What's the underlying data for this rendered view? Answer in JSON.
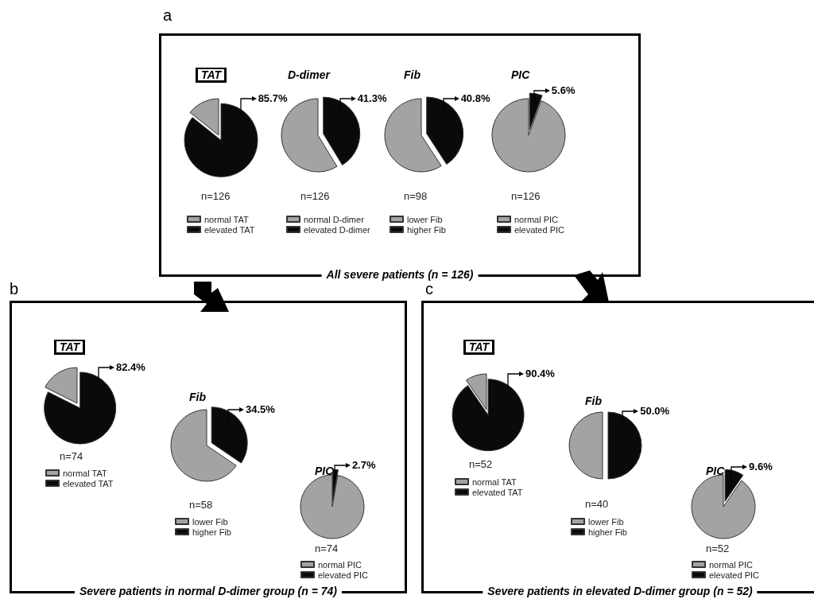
{
  "chart_data": [
    {
      "type": "pie",
      "title": "TAT",
      "categories": [
        "normal TAT",
        "elevated TAT"
      ],
      "values": [
        14.3,
        85.7
      ],
      "colors": [
        "#a3a3a3",
        "#0a0a0a"
      ],
      "value_labels": [
        null,
        "85.7%"
      ],
      "legend": "bottom",
      "annotations": [
        "a",
        "All severe patients (n = 126)",
        "n=126"
      ]
    },
    {
      "type": "pie",
      "title": "D-dimer",
      "categories": [
        "normal D-dimer",
        "elevated D-dimer"
      ],
      "values": [
        58.7,
        41.3
      ],
      "colors": [
        "#a3a3a3",
        "#0a0a0a"
      ],
      "value_labels": [
        null,
        "41.3%"
      ],
      "legend": "bottom",
      "annotations": [
        "n=126"
      ]
    },
    {
      "type": "pie",
      "title": "Fib",
      "categories": [
        "lower Fib",
        "higher Fib"
      ],
      "values": [
        59.2,
        40.8
      ],
      "colors": [
        "#a3a3a3",
        "#0a0a0a"
      ],
      "value_labels": [
        null,
        "40.8%"
      ],
      "legend": "bottom",
      "annotations": [
        "n=98"
      ]
    },
    {
      "type": "pie",
      "title": "PIC",
      "categories": [
        "normal PIC",
        "elevated PIC"
      ],
      "values": [
        94.4,
        5.6
      ],
      "colors": [
        "#a3a3a3",
        "#0a0a0a"
      ],
      "value_labels": [
        null,
        "5.6%"
      ],
      "legend": "bottom",
      "annotations": [
        "n=126"
      ]
    },
    {
      "type": "pie",
      "title": "TAT",
      "categories": [
        "normal TAT",
        "elevated TAT"
      ],
      "values": [
        17.6,
        82.4
      ],
      "colors": [
        "#a3a3a3",
        "#0a0a0a"
      ],
      "value_labels": [
        null,
        "82.4%"
      ],
      "legend": "bottom",
      "annotations": [
        "b",
        "Severe patients in normal D-dimer group (n = 74)",
        "n=74"
      ]
    },
    {
      "type": "pie",
      "title": "Fib",
      "categories": [
        "lower Fib",
        "higher Fib"
      ],
      "values": [
        65.5,
        34.5
      ],
      "colors": [
        "#a3a3a3",
        "#0a0a0a"
      ],
      "value_labels": [
        null,
        "34.5%"
      ],
      "legend": "bottom",
      "annotations": [
        "n=58"
      ]
    },
    {
      "type": "pie",
      "title": "PIC",
      "categories": [
        "normal PIC",
        "elevated PIC"
      ],
      "values": [
        97.3,
        2.7
      ],
      "colors": [
        "#a3a3a3",
        "#0a0a0a"
      ],
      "value_labels": [
        null,
        "2.7%"
      ],
      "legend": "bottom",
      "annotations": [
        "n=74"
      ]
    },
    {
      "type": "pie",
      "title": "TAT",
      "categories": [
        "normal TAT",
        "elevated TAT"
      ],
      "values": [
        9.6,
        90.4
      ],
      "colors": [
        "#a3a3a3",
        "#0a0a0a"
      ],
      "value_labels": [
        null,
        "90.4%"
      ],
      "legend": "bottom",
      "annotations": [
        "c",
        "Severe patients in elevated D-dimer group (n = 52)",
        "n=52"
      ]
    },
    {
      "type": "pie",
      "title": "Fib",
      "categories": [
        "lower Fib",
        "higher Fib"
      ],
      "values": [
        50.0,
        50.0
      ],
      "colors": [
        "#a3a3a3",
        "#0a0a0a"
      ],
      "value_labels": [
        null,
        "50.0%"
      ],
      "legend": "bottom",
      "annotations": [
        "n=40"
      ]
    },
    {
      "type": "pie",
      "title": "PIC",
      "categories": [
        "normal PIC",
        "elevated PIC"
      ],
      "values": [
        90.4,
        9.6
      ],
      "colors": [
        "#a3a3a3",
        "#0a0a0a"
      ],
      "value_labels": [
        null,
        "9.6%"
      ],
      "legend": "bottom",
      "annotations": [
        "n=52"
      ]
    }
  ]
}
